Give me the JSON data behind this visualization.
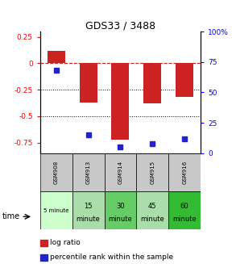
{
  "title": "GDS33 / 3488",
  "samples": [
    "GSM908",
    "GSM913",
    "GSM914",
    "GSM915",
    "GSM916"
  ],
  "time_labels_line1": [
    "5 minute",
    "15",
    "30",
    "45",
    "60"
  ],
  "time_labels_line2": [
    "",
    "minute",
    "minute",
    "minute",
    "minute"
  ],
  "time_bg_colors": [
    "#ccffcc",
    "#aaddaa",
    "#66cc66",
    "#aaddaa",
    "#33bb33"
  ],
  "log_ratios": [
    0.12,
    -0.37,
    -0.72,
    -0.38,
    -0.32
  ],
  "percentile_ranks": [
    68,
    15,
    5,
    8,
    12
  ],
  "bar_color": "#cc2222",
  "dot_color": "#2222cc",
  "ylim_left": [
    -0.85,
    0.3
  ],
  "ylim_right": [
    0,
    100
  ],
  "yticks_left": [
    0.25,
    0.0,
    -0.25,
    -0.5,
    -0.75
  ],
  "yticks_right": [
    100,
    75,
    50,
    25,
    0
  ],
  "hline_y": 0,
  "dotted_lines": [
    -0.25,
    -0.5
  ],
  "bar_width": 0.55,
  "gray_color": "#c8c8c8",
  "legend_items": [
    "log ratio",
    "percentile rank within the sample"
  ],
  "legend_colors": [
    "#cc2222",
    "#2222cc"
  ]
}
